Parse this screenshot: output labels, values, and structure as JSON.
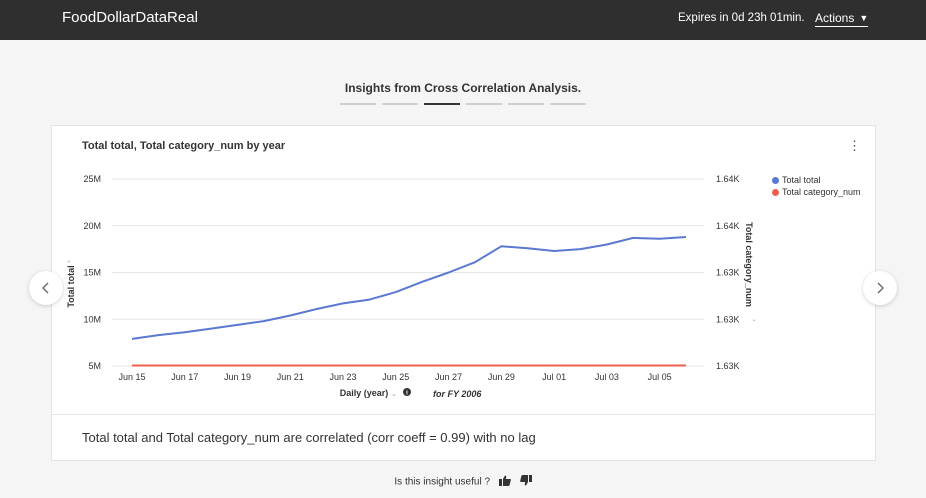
{
  "header": {
    "app_title": "FoodDollarDataReal",
    "expires_text": "Expires in 0d 23h 01min.",
    "actions_label": "Actions"
  },
  "insights": {
    "title": "Insights from Cross Correlation Analysis.",
    "pages": 6,
    "active_page": 3
  },
  "card": {
    "menu_icon": "kebab-menu-icon",
    "summary": "Total total and Total category_num are correlated (corr coeff = 0.99) with no lag"
  },
  "navigation": {
    "prev_icon": "chevron-left-icon",
    "next_icon": "chevron-right-icon"
  },
  "feedback": {
    "question": "Is this insight useful ?",
    "thumbs_up_icon": "thumbs-up-icon",
    "thumbs_down_icon": "thumbs-down-icon"
  },
  "chart_data": {
    "type": "line",
    "title": "Total total, Total category_num by year",
    "xlabel": "Daily (year)",
    "x_note": "for FY 2006",
    "ylabel": "Total total",
    "y2label": "Total category_num",
    "x_ticks": [
      "Jun 15",
      "Jun 17",
      "Jun 19",
      "Jun 21",
      "Jun 23",
      "Jun 25",
      "Jun 27",
      "Jun 29",
      "Jul 01",
      "Jul 03",
      "Jul 05"
    ],
    "y_ticks": [
      "25M",
      "20M",
      "15M",
      "10M",
      "5M"
    ],
    "y_tick_values": [
      25000000,
      20000000,
      15000000,
      10000000,
      5000000
    ],
    "y2_ticks": [
      "1.64K",
      "1.64K",
      "1.63K",
      "1.63K",
      "1.63K"
    ],
    "ylim": [
      5000000,
      25000000
    ],
    "x_days": [
      "Jun 15",
      "Jun 16",
      "Jun 17",
      "Jun 18",
      "Jun 19",
      "Jun 20",
      "Jun 21",
      "Jun 22",
      "Jun 23",
      "Jun 24",
      "Jun 25",
      "Jun 26",
      "Jun 27",
      "Jun 28",
      "Jun 29",
      "Jun 30",
      "Jul 01",
      "Jul 02",
      "Jul 03",
      "Jul 04",
      "Jul 05",
      "Jul 06"
    ],
    "series": [
      {
        "name": "Total total",
        "color": "#5b78d2",
        "axis": "left",
        "values": [
          7900000,
          8300000,
          8600000,
          9000000,
          9400000,
          9800000,
          10400000,
          11100000,
          11700000,
          12100000,
          12900000,
          14000000,
          15000000,
          16100000,
          17800000,
          17600000,
          17300000,
          17500000,
          18000000,
          18700000,
          18600000,
          18800000
        ]
      },
      {
        "name": "Total category_num",
        "color": "#ef5f4e",
        "axis": "right",
        "values": [
          5050000,
          5050000,
          5050000,
          5050000,
          5050000,
          5050000,
          5050000,
          5050000,
          5050000,
          5050000,
          5050000,
          5050000,
          5050000,
          5050000,
          5050000,
          5050000,
          5050000,
          5050000,
          5050000,
          5050000,
          5050000,
          5050000
        ]
      }
    ],
    "grid": true,
    "legend": "top-right"
  }
}
